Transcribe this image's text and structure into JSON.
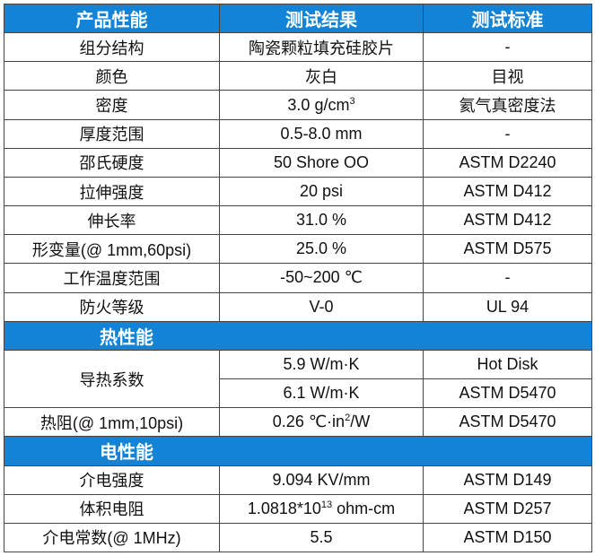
{
  "header": {
    "col1": "产品性能",
    "col2": "测试结果",
    "col3": "测试标准"
  },
  "rows": [
    {
      "property": "组分结构",
      "result": "陶瓷颗粒填充硅胶片",
      "standard": "-"
    },
    {
      "property": "颜色",
      "result": "灰白",
      "standard": "目视"
    },
    {
      "property": "密度",
      "result": "3.0 g/cm",
      "result_sup": "3",
      "standard": "氦气真密度法"
    },
    {
      "property": "厚度范围",
      "result": "0.5-8.0 mm",
      "standard": "-"
    },
    {
      "property": "邵氏硬度",
      "result": "50 Shore OO",
      "standard": "ASTM D2240"
    },
    {
      "property": "拉伸强度",
      "result": "20 psi",
      "standard": "ASTM D412"
    },
    {
      "property": "伸长率",
      "result": "31.0 %",
      "standard": "ASTM D412"
    },
    {
      "property": "形变量(@ 1mm,60psi)",
      "result": "25.0 %",
      "standard": "ASTM D575"
    },
    {
      "property": "工作温度范围",
      "result": "-50~200 ℃",
      "standard": "-"
    },
    {
      "property": "防火等级",
      "result": "V-0",
      "standard": "UL 94"
    }
  ],
  "thermal": {
    "title": "热性能",
    "conductivity_label": "导热系数",
    "conductivity": [
      {
        "result": "5.9 W/m·K",
        "standard": "Hot Disk"
      },
      {
        "result": "6.1 W/m·K",
        "standard": "ASTM D5470"
      }
    ],
    "resistance": {
      "property": "热阻(@ 1mm,10psi)",
      "result_pre": "0.26 ℃·in",
      "result_sup": "2",
      "result_post": "/W",
      "standard": "ASTM D5470"
    }
  },
  "electrical": {
    "title": "电性能",
    "rows": [
      {
        "property": "介电强度",
        "result": "9.094 KV/mm",
        "standard": "ASTM D149"
      },
      {
        "property": "体积电阻",
        "result_pre": "1.0818*10",
        "result_sup": "13",
        "result_post": " ohm-cm",
        "standard": "ASTM D257"
      },
      {
        "property": "介电常数(@ 1MHz)",
        "result": "5.5",
        "standard": "ASTM D150"
      }
    ]
  }
}
